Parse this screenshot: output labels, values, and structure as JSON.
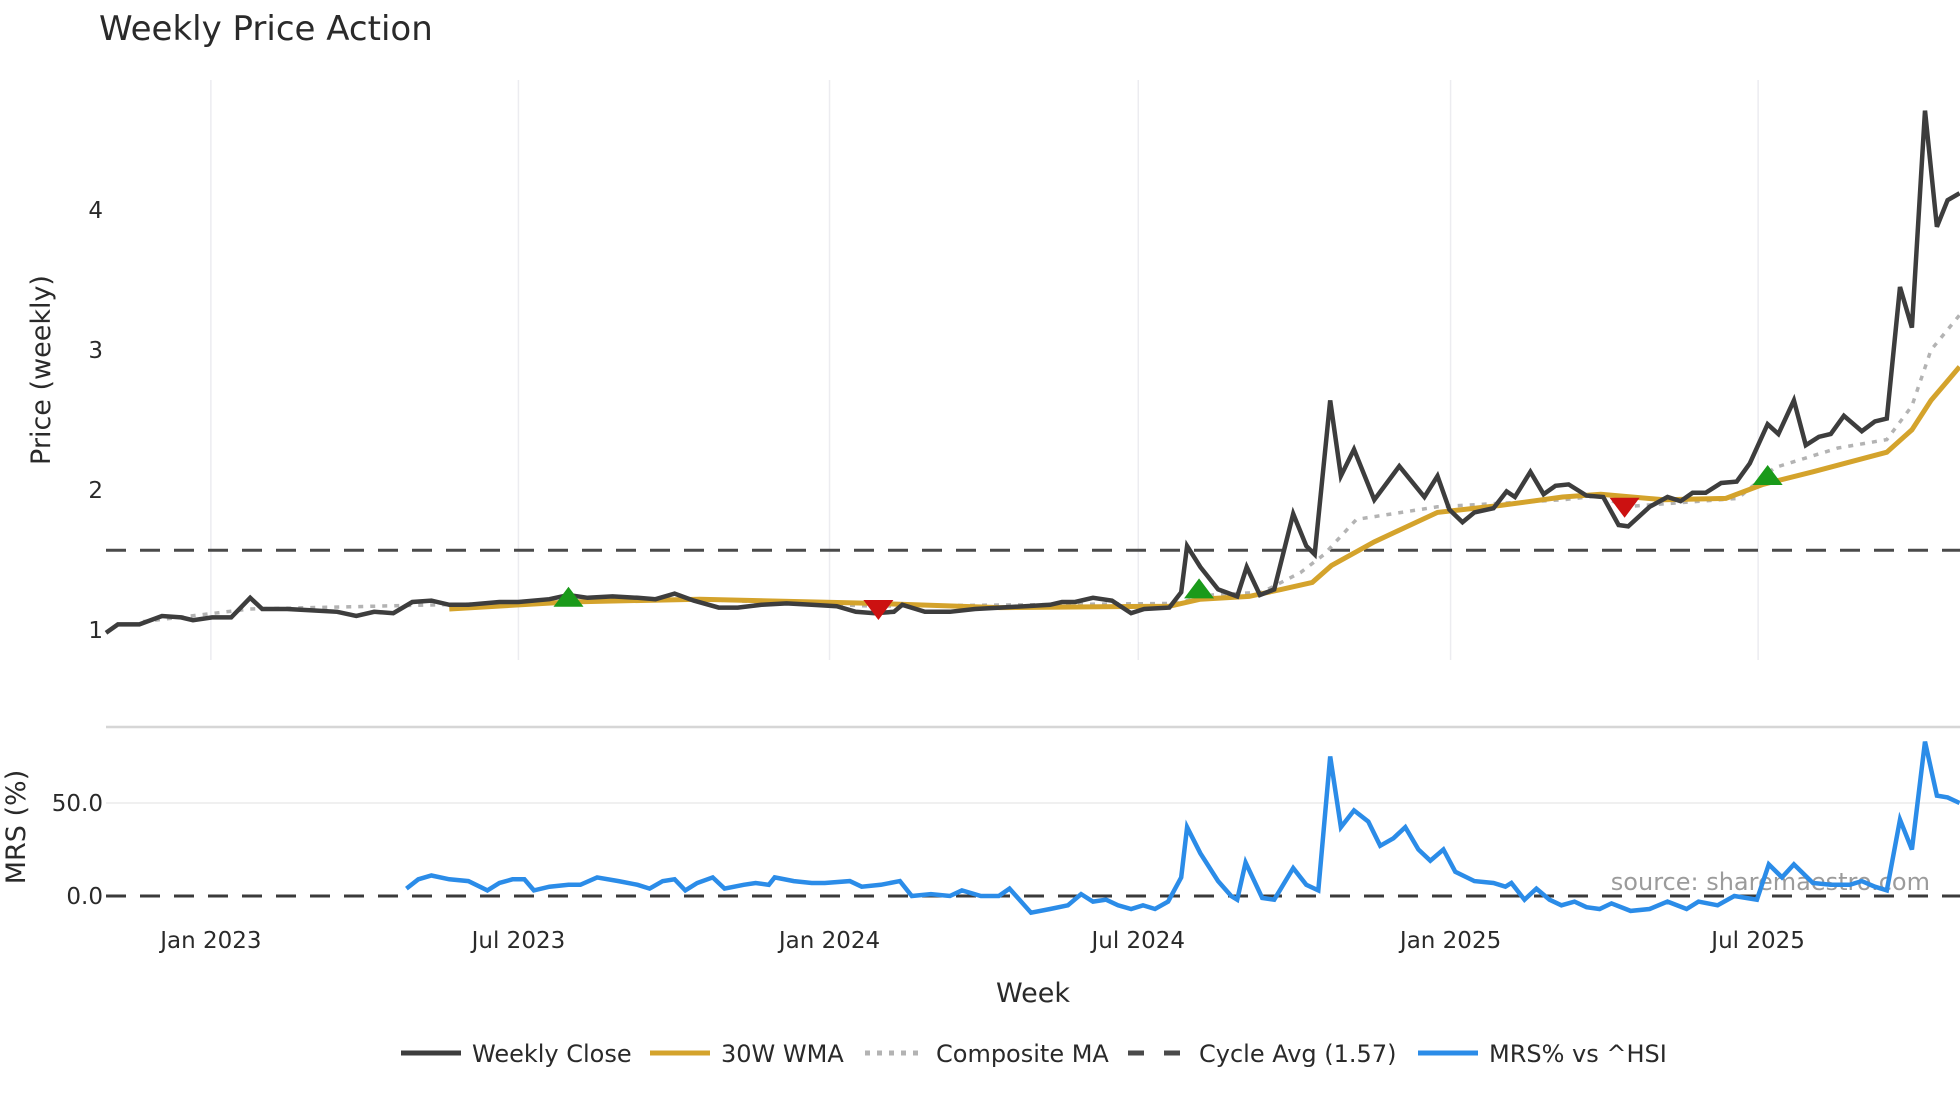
{
  "chart_data": [
    {
      "type": "line",
      "title": "Weekly Price Action",
      "xlabel": "",
      "ylabel": "Price (weekly)",
      "ylim": [
        0.75,
        4.85
      ],
      "yticks": [
        1,
        2,
        3,
        4
      ],
      "grid": "vertical",
      "x_unit": "week index (0 = first week shown, ~early Nov 2022)",
      "series": [
        {
          "name": "Weekly Close",
          "color": "#3d3d3d",
          "style": "solid",
          "x": [
            0,
            1,
            2.8,
            4.7,
            6.3,
            7.3,
            8.9,
            10.5,
            12.1,
            13.1,
            15.2,
            17.3,
            19.4,
            21,
            22.5,
            24.1,
            25.7,
            27.3,
            28.8,
            30.4,
            33.0,
            34.6,
            37.2,
            38.8,
            40.4,
            42.5,
            44.6,
            46.1,
            47.7,
            49.3,
            51.4,
            53,
            55,
            57.1,
            59.2,
            61.3,
            62.9,
            64.5,
            66.1,
            66.8,
            68.7,
            70.8,
            72.9,
            75,
            77.1,
            79.2,
            80.2,
            81.3,
            82.8,
            84.4,
            86,
            87.1,
            89.2,
            90.2,
            90.7,
            91.8,
            93.3,
            94.9,
            95.7,
            96.8,
            98,
            99.6,
            100.7,
            101.4,
            102.7,
            103.6,
            104.7,
            106.4,
            108.5,
            110.6,
            111.7,
            112.7,
            113.8,
            114.8,
            116.4,
            117.5,
            118.2,
            119.5,
            120.6,
            121.6,
            122.7,
            124.2,
            125.6,
            126.9,
            127.7,
            129.5,
            131,
            132.1,
            133.1,
            134.2,
            135.5,
            136.8,
            137.9,
            139.4,
            140.3,
            141.6,
            142.6,
            143.7,
            144.7,
            145.8,
            147.3,
            148.4,
            149.4,
            150.5,
            151.5,
            152.6,
            153.6,
            154.5,
            155.5
          ],
          "values": [
            0.98,
            1.04,
            1.04,
            1.1,
            1.09,
            1.07,
            1.09,
            1.09,
            1.23,
            1.15,
            1.15,
            1.14,
            1.13,
            1.1,
            1.13,
            1.12,
            1.2,
            1.21,
            1.18,
            1.18,
            1.2,
            1.2,
            1.22,
            1.25,
            1.23,
            1.24,
            1.23,
            1.22,
            1.26,
            1.21,
            1.16,
            1.16,
            1.18,
            1.19,
            1.18,
            1.17,
            1.13,
            1.12,
            1.13,
            1.18,
            1.13,
            1.13,
            1.15,
            1.16,
            1.17,
            1.18,
            1.2,
            1.2,
            1.23,
            1.21,
            1.12,
            1.15,
            1.16,
            1.27,
            1.6,
            1.45,
            1.29,
            1.24,
            1.45,
            1.25,
            1.29,
            1.83,
            1.6,
            1.54,
            2.64,
            2.1,
            2.29,
            1.93,
            2.17,
            1.95,
            2.1,
            1.86,
            1.77,
            1.84,
            1.87,
            1.99,
            1.95,
            2.13,
            1.97,
            2.03,
            2.04,
            1.96,
            1.95,
            1.75,
            1.74,
            1.88,
            1.95,
            1.92,
            1.98,
            1.98,
            2.05,
            2.06,
            2.19,
            2.47,
            2.4,
            2.64,
            2.32,
            2.38,
            2.4,
            2.53,
            2.42,
            2.49,
            2.51,
            3.45,
            3.16,
            4.71,
            3.88,
            4.07,
            4.12
          ]
        },
        {
          "name": "30W WMA",
          "color": "#d4a32c",
          "style": "solid",
          "x": [
            28.8,
            38.8,
            49.8,
            64.5,
            75,
            89.2,
            91.8,
            95.9,
            98.6,
            101.2,
            102.8,
            106.4,
            111.7,
            117,
            122.2,
            125.4,
            130.7,
            135.9,
            139,
            143.2,
            149.4,
            151.5,
            153.1,
            155.5
          ],
          "values": [
            1.15,
            1.2,
            1.22,
            1.19,
            1.16,
            1.17,
            1.22,
            1.24,
            1.29,
            1.34,
            1.46,
            1.63,
            1.84,
            1.89,
            1.95,
            1.97,
            1.93,
            1.94,
            2.04,
            2.13,
            2.27,
            2.43,
            2.64,
            2.88
          ]
        },
        {
          "name": "Composite MA",
          "color": "#b3b3b3",
          "style": "dotted",
          "x": [
            3.1,
            12.1,
            27.8,
            49.3,
            64.5,
            89.7,
            92.8,
            97,
            100.2,
            102.2,
            104.9,
            111.7,
            122.2,
            125.4,
            127.4,
            136.9,
            140,
            145.3,
            149.4,
            151.5,
            153.1,
            155.5
          ],
          "values": [
            1.06,
            1.15,
            1.18,
            1.22,
            1.17,
            1.19,
            1.25,
            1.27,
            1.41,
            1.54,
            1.79,
            1.88,
            1.93,
            1.96,
            1.88,
            1.94,
            2.16,
            2.3,
            2.36,
            2.6,
            3.0,
            3.25
          ]
        },
        {
          "name": "Cycle Avg (1.57)",
          "color": "#4a4a4a",
          "style": "dashed",
          "constant": 1.57
        }
      ],
      "markers": [
        {
          "type": "buy",
          "shape": "triangle-up",
          "color": "#1a9a1a",
          "x": 38.8,
          "value": 1.23
        },
        {
          "type": "sell",
          "shape": "triangle-down",
          "color": "#cc1111",
          "x": 64.8,
          "value": 1.15
        },
        {
          "type": "buy",
          "shape": "triangle-up",
          "color": "#1a9a1a",
          "x": 91.7,
          "value": 1.29
        },
        {
          "type": "sell",
          "shape": "triangle-down",
          "color": "#cc1111",
          "x": 127.4,
          "value": 1.88
        },
        {
          "type": "buy",
          "shape": "triangle-up",
          "color": "#1a9a1a",
          "x": 139.4,
          "value": 2.1
        }
      ]
    },
    {
      "type": "line",
      "title": "",
      "xlabel": "Week",
      "ylabel": "MRS (%)",
      "ylim": [
        -15,
        90
      ],
      "yticks": [
        "0.0",
        "50.0"
      ],
      "xticks": [
        {
          "label": "Jan 2023",
          "x": 8.8
        },
        {
          "label": "Jul 2023",
          "x": 34.6
        },
        {
          "label": "Jan 2024",
          "x": 60.7
        },
        {
          "label": "Jul 2024",
          "x": 86.6
        },
        {
          "label": "Jan 2025",
          "x": 112.8
        },
        {
          "label": "Jul 2025",
          "x": 138.6
        }
      ],
      "series": [
        {
          "name": "MRS% vs ^HSI",
          "color": "#2b8ce8",
          "style": "solid",
          "x": [
            25.2,
            26.2,
            27.3,
            28.8,
            30.4,
            32,
            33,
            34.1,
            35.1,
            35.9,
            37.2,
            38.8,
            39.8,
            41.2,
            43,
            44.6,
            45.6,
            46.7,
            47.7,
            48.6,
            49.6,
            50.9,
            51.9,
            53.5,
            54.5,
            55.6,
            56.1,
            57.7,
            59.2,
            60.3,
            62.4,
            63.4,
            65,
            66.6,
            67.6,
            69.2,
            70.8,
            71.8,
            73.4,
            74.9,
            75.8,
            77.6,
            79.2,
            80.7,
            81.8,
            82.8,
            83.9,
            84.9,
            86,
            87,
            88,
            89.1,
            90.2,
            90.7,
            91.8,
            93.3,
            94.4,
            94.9,
            95.6,
            97,
            98,
            99.6,
            100.7,
            101.7,
            102.7,
            103.6,
            104.7,
            105.9,
            106.9,
            108,
            109,
            110.1,
            111.1,
            112.2,
            113.2,
            114.8,
            116.4,
            117.4,
            117.9,
            119,
            120,
            121.1,
            122.1,
            123.2,
            124.2,
            125.3,
            126.3,
            127.9,
            129.5,
            131,
            132.6,
            133.6,
            135.2,
            136.6,
            138.5,
            139.5,
            140.6,
            141.6,
            143.2,
            144.7,
            146.3,
            147.3,
            148.4,
            149.4,
            150.5,
            151.5,
            152.6,
            153.6,
            154.5,
            155.5
          ],
          "values": [
            4,
            9,
            11,
            9,
            8,
            3,
            7,
            9,
            9,
            3,
            5,
            6,
            6,
            10,
            8,
            6,
            4,
            8,
            9,
            3,
            7,
            10,
            4,
            6,
            7,
            6,
            10,
            8,
            7,
            7,
            8,
            5,
            6,
            8,
            0,
            1,
            0,
            3,
            0,
            0,
            4,
            -9,
            -7,
            -5,
            1,
            -3,
            -2,
            -5,
            -7,
            -5,
            -7,
            -3,
            10,
            37,
            23,
            8,
            0,
            -2,
            18,
            -1,
            -2,
            15,
            6,
            3,
            75,
            37,
            46,
            40,
            27,
            31,
            37,
            25,
            19,
            25,
            13,
            8,
            7,
            5,
            7,
            -2,
            4,
            -2,
            -5,
            -3,
            -6,
            -7,
            -4,
            -8,
            -7,
            -3,
            -7,
            -3,
            -5,
            0,
            -2,
            17,
            10,
            17,
            7,
            6,
            6,
            8,
            5,
            3,
            41,
            25,
            83,
            54,
            53,
            50
          ]
        },
        {
          "name": "zero-line",
          "color": "#3a3a3a",
          "style": "dashed",
          "constant": 0
        }
      ],
      "annotations": [
        "source: sharemaestro.com"
      ]
    }
  ],
  "legend": {
    "position": "bottom-center",
    "items": [
      {
        "label": "Weekly Close",
        "color": "#3d3d3d",
        "style": "solid"
      },
      {
        "label": "30W WMA",
        "color": "#d4a32c",
        "style": "solid"
      },
      {
        "label": "Composite MA",
        "color": "#b3b3b3",
        "style": "dotted"
      },
      {
        "label": "Cycle Avg (1.57)",
        "color": "#4a4a4a",
        "style": "dashed"
      },
      {
        "label": "MRS% vs ^HSI",
        "color": "#2b8ce8",
        "style": "solid"
      }
    ]
  },
  "labels": {
    "title": "Weekly Price Action",
    "price_ylabel": "Price (weekly)",
    "mrs_ylabel": "MRS (%)",
    "xlabel": "Week",
    "source": "source: sharemaestro.com",
    "price_ticks": [
      "1",
      "2",
      "3",
      "4"
    ],
    "mrs_ticks": [
      "0.0",
      "50.0"
    ]
  }
}
